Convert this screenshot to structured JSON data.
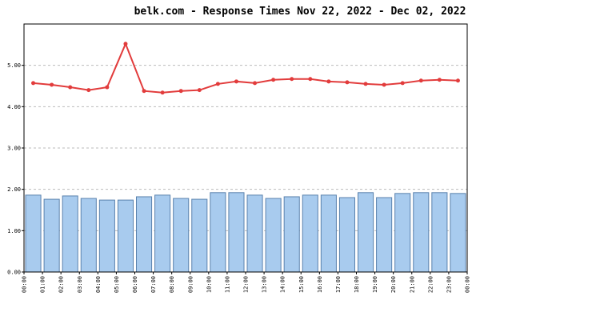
{
  "chart_data": {
    "type": "bar-line",
    "title": "belk.com - Response Times Nov 22, 2022 - Dec 02, 2022",
    "xticks": [
      "00:00",
      "01:00",
      "02:00",
      "03:00",
      "04:00",
      "05:00",
      "06:00",
      "07:00",
      "08:00",
      "09:00",
      "10:00",
      "11:00",
      "12:00",
      "13:00",
      "14:00",
      "15:00",
      "16:00",
      "17:00",
      "18:00",
      "19:00",
      "20:00",
      "21:00",
      "22:00",
      "23:00",
      "00:00"
    ],
    "ylim": [
      0,
      6
    ],
    "yticks": [
      {
        "value": 0,
        "label": "0.00"
      },
      {
        "value": 1,
        "label": "1.00"
      },
      {
        "value": 2,
        "label": "2.00"
      },
      {
        "value": 3,
        "label": "3.00"
      },
      {
        "value": 4,
        "label": "4.00"
      },
      {
        "value": 5,
        "label": "5.00"
      }
    ],
    "grid": true,
    "series": [
      {
        "kind": "bar",
        "color": "#a8cbee",
        "values": [
          1.86,
          1.76,
          1.84,
          1.78,
          1.74,
          1.74,
          1.82,
          1.86,
          1.78,
          1.76,
          1.92,
          1.92,
          1.86,
          1.78,
          1.82,
          1.86,
          1.86,
          1.8,
          1.92,
          1.8,
          1.9,
          1.92,
          1.92,
          1.9
        ]
      },
      {
        "kind": "line",
        "color": "#e23c3c",
        "values": [
          4.57,
          4.53,
          4.47,
          4.4,
          4.47,
          5.52,
          4.38,
          4.34,
          4.38,
          4.4,
          4.55,
          4.61,
          4.57,
          4.65,
          4.67,
          4.67,
          4.61,
          4.59,
          4.55,
          4.53,
          4.57,
          4.63,
          4.65,
          4.63
        ]
      }
    ]
  }
}
